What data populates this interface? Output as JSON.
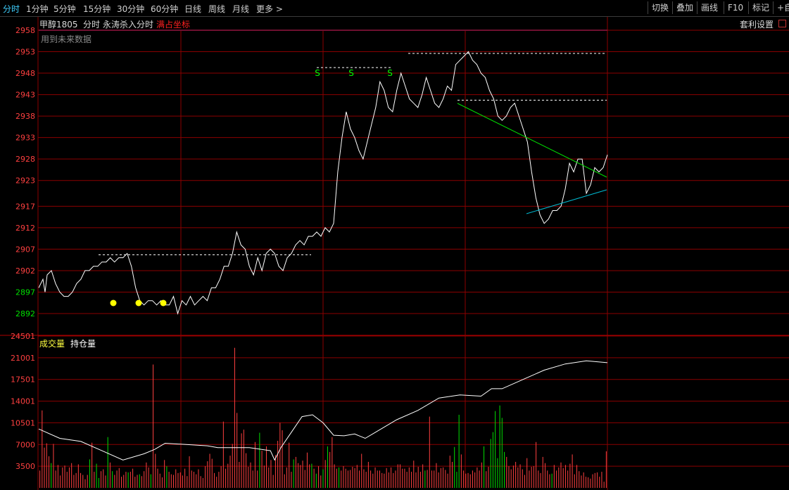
{
  "toolbar": {
    "tabs": [
      {
        "label": "分时",
        "active": true
      },
      {
        "label": "1分钟"
      },
      {
        "label": "5分钟"
      },
      {
        "label": "15分钟"
      },
      {
        "label": "30分钟"
      },
      {
        "label": "60分钟"
      },
      {
        "label": "日线"
      },
      {
        "label": "周线"
      },
      {
        "label": "月线"
      },
      {
        "label": "更多 >"
      }
    ],
    "right_buttons": [
      "切换",
      "叠加",
      "画线",
      "F10",
      "标记",
      "+自"
    ]
  },
  "header": {
    "contract": "甲醇1805",
    "mode": "分时",
    "indicator": "永涛杀入分时",
    "highlight": "满占坐标",
    "settings": "套利设置",
    "note": "用到未来数据"
  },
  "volume_panel": {
    "label_volume": "成交量",
    "label_oi": "持仓量"
  },
  "colors": {
    "up": "#ff4040",
    "down": "#00e000",
    "grid": "#8b0000",
    "price_line": "#ffffff",
    "marker": "#ffff00",
    "signal": "#00ff00",
    "resistance": "#00e000",
    "support": "#00bcd4",
    "highlight_text": "#ff2020",
    "volume_label": "#ffff40"
  },
  "chart_data": [
    {
      "type": "line",
      "name": "price",
      "y_ticks": [
        2958,
        2953,
        2948,
        2943,
        2938,
        2933,
        2928,
        2923,
        2917,
        2912,
        2907,
        2902,
        2897,
        2892
      ],
      "ylim": [
        2887,
        2958
      ],
      "xlim": [
        0,
        270
      ],
      "reference_price": 2900,
      "x": [
        0,
        2,
        3,
        4,
        6,
        8,
        10,
        12,
        14,
        16,
        18,
        20,
        22,
        24,
        26,
        28,
        30,
        32,
        34,
        36,
        38,
        40,
        42,
        44,
        46,
        48,
        50,
        52,
        54,
        56,
        58,
        60,
        62,
        64,
        66,
        68,
        70,
        72,
        74,
        76,
        78,
        80,
        82,
        84,
        86,
        88,
        90,
        92,
        94,
        96,
        98,
        100,
        102,
        104,
        106,
        108,
        110,
        112,
        114,
        116,
        118,
        120,
        122,
        124,
        126,
        128,
        130,
        132,
        134,
        136,
        138,
        140,
        142,
        144,
        146,
        148,
        150,
        152,
        154,
        156,
        158,
        160,
        162,
        164,
        166,
        168,
        170,
        172,
        174,
        176,
        178,
        180,
        182,
        184,
        186,
        188,
        190,
        192,
        194,
        196,
        198,
        200,
        202,
        204,
        206,
        208,
        210,
        212,
        214,
        216,
        218,
        220,
        222,
        224,
        226,
        228,
        230,
        232,
        234,
        236,
        238,
        240,
        242,
        244,
        246,
        248,
        250,
        252,
        254,
        256,
        258,
        260,
        262,
        264,
        266,
        268,
        270
      ],
      "values": [
        2898,
        2900,
        2897,
        2901,
        2902,
        2899,
        2897,
        2896,
        2896,
        2897,
        2899,
        2900,
        2902,
        2902,
        2903,
        2903,
        2904,
        2904,
        2905,
        2904,
        2905,
        2905,
        2906,
        2903,
        2898,
        2895,
        2894,
        2895,
        2895,
        2894,
        2895,
        2894,
        2894,
        2896,
        2892,
        2895,
        2894,
        2896,
        2894,
        2895,
        2896,
        2895,
        2898,
        2898,
        2900,
        2903,
        2903,
        2906,
        2911,
        2908,
        2907,
        2903,
        2901,
        2905,
        2902,
        2906,
        2907,
        2906,
        2903,
        2902,
        2905,
        2906,
        2908,
        2909,
        2908,
        2910,
        2910,
        2911,
        2910,
        2912,
        2911,
        2913,
        2925,
        2933,
        2939,
        2935,
        2933,
        2930,
        2928,
        2932,
        2936,
        2940,
        2946,
        2944,
        2940,
        2939,
        2944,
        2948,
        2945,
        2942,
        2941,
        2940,
        2943,
        2947,
        2944,
        2941,
        2940,
        2942,
        2945,
        2944,
        2950,
        2951,
        2952,
        2953,
        2951,
        2950,
        2948,
        2947,
        2944,
        2942,
        2938,
        2937,
        2938,
        2940,
        2941,
        2938,
        2935,
        2932,
        2925,
        2919,
        2915,
        2913,
        2914,
        2916,
        2916,
        2917,
        2921,
        2927,
        2925,
        2928,
        2928,
        2920,
        2922,
        2926,
        2925,
        2926,
        2929
      ]
    },
    {
      "type": "bar",
      "name": "volume",
      "y_ticks": [
        24501,
        21001,
        17501,
        14001,
        10501,
        7000,
        3500
      ],
      "ylim": [
        0,
        24501
      ],
      "values": [
        2800,
        12500,
        6500,
        7200,
        5100,
        4000,
        7100,
        2800,
        3700,
        2000,
        3300,
        3600,
        2600,
        3300,
        4000,
        2100,
        2400,
        3800,
        2400,
        2100,
        1400,
        2100,
        4600,
        7300,
        2600,
        3900,
        1600,
        2700,
        3000,
        2000,
        8200,
        4100,
        2700,
        2100,
        2800,
        3200,
        1800,
        2100,
        2600,
        2500,
        2600,
        3100,
        1800,
        2100,
        2200,
        1900,
        2700,
        4100,
        3300,
        2200,
        19900,
        5500,
        3100,
        2300,
        1700,
        4500,
        3500,
        2600,
        2200,
        2100,
        3000,
        2400,
        2500,
        2000,
        3100,
        1900,
        5100,
        2800,
        2600,
        2200,
        3000,
        1900,
        1600,
        3500,
        4300,
        5500,
        4700,
        2400,
        1800,
        2600,
        3500,
        10700,
        3100,
        3900,
        5200,
        7100,
        22600,
        12100,
        4200,
        8800,
        9400,
        5600,
        3400,
        4100,
        2800,
        7400,
        2800,
        8900,
        6000,
        3600,
        6700,
        3300,
        4500,
        2100,
        5300,
        7600,
        10500,
        9300,
        2200,
        3300,
        7300,
        2600,
        4600,
        5000,
        4000,
        3700,
        4400,
        2900,
        5700,
        3800,
        3900,
        3100,
        2300,
        3500,
        2000,
        3000,
        4500,
        6700,
        5800,
        8200,
        3800,
        3100,
        3300,
        2800,
        3500,
        3100,
        2800,
        2900,
        3400,
        3200,
        3700,
        2800,
        5500,
        3000,
        2600,
        4200,
        2800,
        2300,
        3300,
        2800,
        2800,
        2400,
        2300,
        3200,
        2500,
        3300,
        2400,
        2800,
        3800,
        3800,
        3100,
        3100,
        2600,
        3300,
        2600,
        4400,
        2500,
        3400,
        2600,
        3800,
        2800,
        2900,
        11500,
        2800,
        2800,
        4000,
        2500,
        3200,
        3300,
        2900,
        2300,
        5200,
        4200,
        6600,
        2600,
        11800,
        5400,
        2800,
        2300,
        2400,
        2200,
        2800,
        2500,
        3300,
        2800,
        4100,
        6700,
        2700,
        3400,
        7900,
        9000,
        12400,
        4800,
        13300,
        11300,
        5800,
        5000,
        3500,
        3000,
        3600,
        4200,
        3300,
        3800,
        3000,
        2100,
        4800,
        2800,
        3400,
        3500,
        7400,
        2800,
        2400,
        5000,
        4000,
        2800,
        2200,
        2300,
        3700,
        2800,
        3300,
        4100,
        3200,
        3700,
        2800,
        3900,
        5400,
        2200,
        3700,
        2700,
        2000,
        2500,
        1800,
        1700,
        1500,
        2200,
        2400,
        2500,
        1800,
        2600,
        1000,
        5900
      ],
      "up_flags": [
        1,
        1,
        1,
        1,
        1,
        0,
        1,
        1,
        1,
        1,
        1,
        1,
        1,
        1,
        1,
        1,
        1,
        1,
        1,
        1,
        1,
        1,
        0,
        1,
        1,
        0,
        0,
        1,
        1,
        1,
        0,
        1,
        0,
        1,
        1,
        1,
        1,
        1,
        1,
        0,
        1,
        1,
        1,
        1,
        0,
        1,
        1,
        1,
        1,
        0,
        1,
        1,
        1,
        1,
        1,
        1,
        0,
        1,
        1,
        1,
        1,
        1,
        1,
        1,
        1,
        1,
        1,
        1,
        1,
        1,
        1,
        1,
        1,
        1,
        1,
        1,
        1,
        1,
        1,
        1,
        1,
        1,
        1,
        1,
        1,
        1,
        1,
        1,
        1,
        1,
        1,
        1,
        1,
        1,
        1,
        1,
        1,
        0,
        1,
        1,
        1,
        1,
        1,
        1,
        1,
        1,
        1,
        1,
        1,
        1,
        1,
        1,
        0,
        1,
        1,
        1,
        1,
        1,
        1,
        1,
        0,
        1,
        0,
        1,
        1,
        0,
        1,
        0,
        1,
        1,
        1,
        1,
        0,
        1,
        1,
        1,
        1,
        1,
        1,
        1,
        1,
        1,
        1,
        1,
        1,
        1,
        1,
        1,
        1,
        1,
        1,
        1,
        1,
        1,
        1,
        1,
        1,
        1,
        1,
        1,
        1,
        1,
        1,
        1,
        1,
        1,
        1,
        1,
        1,
        1,
        0,
        1,
        1,
        1,
        1,
        1,
        1,
        1,
        1,
        1,
        1,
        1,
        1,
        0,
        0,
        0,
        1,
        1,
        1,
        1,
        1,
        1,
        1,
        1,
        1,
        1,
        0,
        1,
        1,
        0,
        0,
        0,
        0,
        0,
        0,
        0,
        1,
        1,
        1,
        1,
        1,
        1,
        1,
        1,
        1,
        1,
        1,
        1,
        1,
        1,
        1,
        1,
        1,
        1,
        1,
        1,
        0,
        1,
        1,
        1,
        1,
        1,
        1,
        1,
        1,
        1,
        1,
        1,
        1,
        1,
        1,
        1,
        1,
        1,
        1,
        1,
        1,
        1,
        1,
        1,
        1,
        1,
        1,
        1,
        1,
        1,
        1,
        1,
        1
      ]
    },
    {
      "type": "line",
      "name": "open_interest",
      "x": [
        0,
        10,
        20,
        30,
        40,
        50,
        55,
        60,
        70,
        80,
        85,
        90,
        100,
        110,
        112,
        115,
        120,
        125,
        130,
        135,
        140,
        145,
        150,
        155,
        160,
        170,
        180,
        190,
        200,
        210,
        215,
        220,
        230,
        240,
        250,
        260,
        270
      ],
      "values": [
        9500,
        8000,
        7500,
        6000,
        4500,
        5500,
        6200,
        7200,
        7000,
        6800,
        6500,
        6500,
        6500,
        6000,
        4500,
        6500,
        9000,
        11500,
        11800,
        10500,
        8500,
        8400,
        8700,
        8000,
        9000,
        11000,
        12500,
        14500,
        15000,
        14800,
        16000,
        16000,
        17500,
        19000,
        20000,
        20500,
        20200
      ]
    }
  ],
  "annotations": {
    "buy_markers_count": 3,
    "sell_labels": [
      "S",
      "S",
      "S"
    ]
  }
}
